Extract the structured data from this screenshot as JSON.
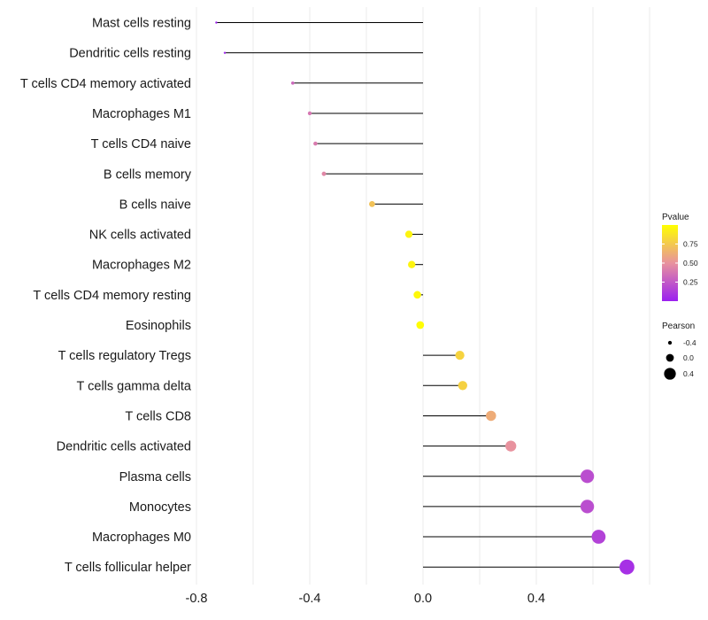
{
  "chart_data": {
    "type": "lollipop",
    "title": "",
    "xlabel": "",
    "ylabel": "",
    "xlim": [
      -0.8,
      0.8
    ],
    "x_ticks": [
      -0.8,
      -0.4,
      0.0,
      0.4
    ],
    "x_tick_labels": [
      "-0.8",
      "-0.4",
      "0.0",
      "0.4"
    ],
    "grid": "vertical",
    "categories": [
      {
        "label": "Mast cells resting",
        "pearson": -0.73,
        "pvalue": 0.02
      },
      {
        "label": "Dendritic cells resting",
        "pearson": -0.7,
        "pvalue": 0.03
      },
      {
        "label": "T cells CD4 memory activated",
        "pearson": -0.46,
        "pvalue": 0.32
      },
      {
        "label": "Macrophages M1",
        "pearson": -0.4,
        "pvalue": 0.38
      },
      {
        "label": "T cells CD4 naive",
        "pearson": -0.38,
        "pvalue": 0.4
      },
      {
        "label": "B cells memory",
        "pearson": -0.35,
        "pvalue": 0.45
      },
      {
        "label": "B cells naive",
        "pearson": -0.18,
        "pvalue": 0.72
      },
      {
        "label": "NK cells activated",
        "pearson": -0.05,
        "pvalue": 0.95
      },
      {
        "label": "Macrophages M2",
        "pearson": -0.04,
        "pvalue": 0.95
      },
      {
        "label": "T cells CD4 memory resting",
        "pearson": -0.02,
        "pvalue": 0.97
      },
      {
        "label": "Eosinophils",
        "pearson": -0.01,
        "pvalue": 0.99
      },
      {
        "label": "T cells regulatory  Tregs ",
        "pearson": 0.13,
        "pvalue": 0.8
      },
      {
        "label": "T cells gamma delta",
        "pearson": 0.14,
        "pvalue": 0.79
      },
      {
        "label": "T cells CD8",
        "pearson": 0.24,
        "pvalue": 0.62
      },
      {
        "label": "Dendritic cells activated",
        "pearson": 0.31,
        "pvalue": 0.5
      },
      {
        "label": "Plasma cells",
        "pearson": 0.58,
        "pvalue": 0.2
      },
      {
        "label": "Monocytes",
        "pearson": 0.58,
        "pvalue": 0.2
      },
      {
        "label": "Macrophages M0",
        "pearson": 0.62,
        "pvalue": 0.15
      },
      {
        "label": "T cells follicular helper",
        "pearson": 0.72,
        "pvalue": 0.07
      }
    ],
    "legend": {
      "position": "right",
      "color": {
        "title": "Pvalue",
        "ticks": [
          0.25,
          0.5,
          0.75
        ],
        "tick_labels": [
          "0.25",
          "0.50",
          "0.75"
        ],
        "range": [
          0.0,
          1.0
        ],
        "low_color": "#9b20f0",
        "mid_color": "#e8929e",
        "high_color": "#ffff00"
      },
      "size": {
        "title": "Pearson",
        "values": [
          -0.4,
          0.0,
          0.4
        ],
        "labels": [
          "-0.4",
          "0.0",
          "0.4"
        ]
      }
    }
  }
}
